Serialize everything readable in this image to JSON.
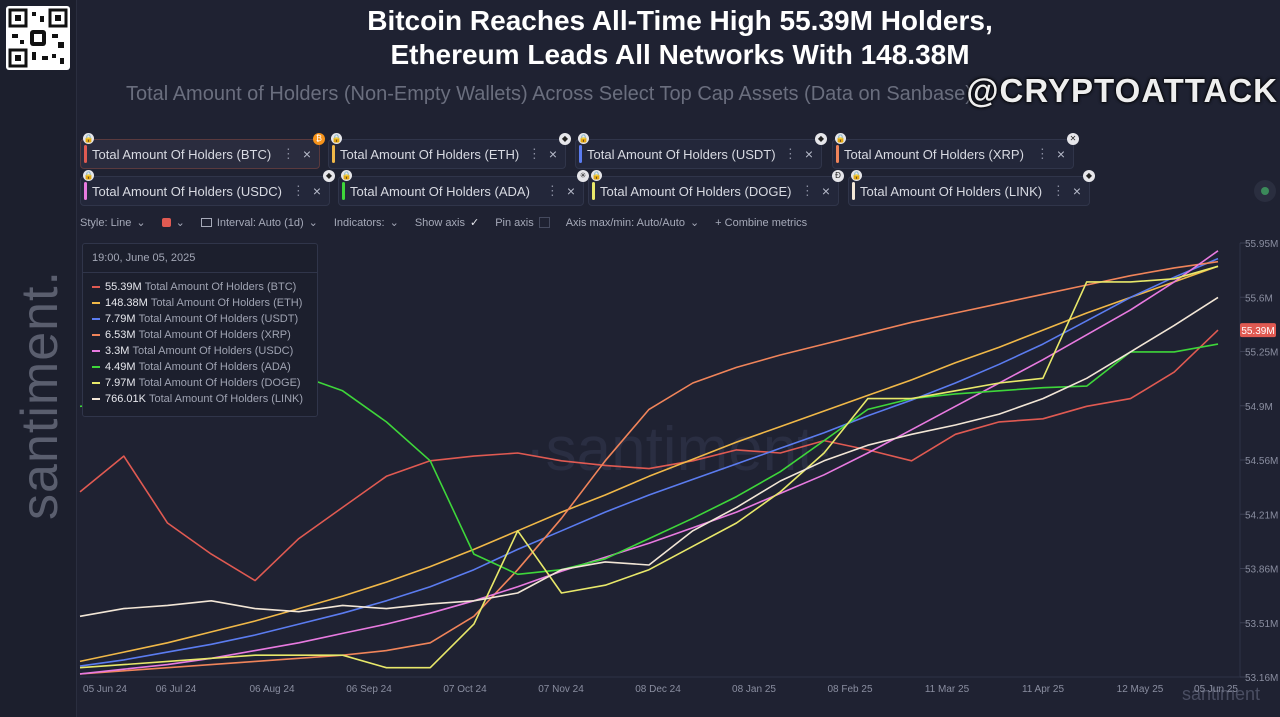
{
  "header": {
    "title_line1": "Bitcoin Reaches All-Time High 55.39M Holders,",
    "title_line2": "Ethereum Leads All Networks With 148.38M",
    "subtitle": "Total Amount of Holders (Non-Empty Wallets) Across Select Top Cap Assets (Data on Sanbase)",
    "handle": "@CRYPTOATTACK",
    "side_watermark": "santiment.",
    "qr_icon": "qr-code-icon"
  },
  "metrics": [
    {
      "label": "Total Amount Of Holders (BTC)",
      "color": "#e05a52",
      "coin": "bitcoin-icon"
    },
    {
      "label": "Total Amount Of Holders (ETH)",
      "color": "#f0b848",
      "coin": "ethereum-icon"
    },
    {
      "label": "Total Amount Of Holders (USDT)",
      "color": "#5b7cf0",
      "coin": "ethereum-icon"
    },
    {
      "label": "Total Amount Of Holders (XRP)",
      "color": "#f0845a",
      "coin": "close-icon"
    },
    {
      "label": "Total Amount Of Holders (USDC)",
      "color": "#e87ae0",
      "coin": "ethereum-icon"
    },
    {
      "label": "Total Amount Of Holders (ADA)",
      "color": "#3ed63a",
      "coin": "cardano-icon"
    },
    {
      "label": "Total Amount Of Holders (DOGE)",
      "color": "#e8e86a",
      "coin": "dogecoin-icon"
    },
    {
      "label": "Total Amount Of Holders (LINK)",
      "color": "#f2e6d6",
      "coin": "ethereum-icon"
    }
  ],
  "toolbar": {
    "style": "Style: Line",
    "interval": "Interval: Auto (1d)",
    "indicators": "Indicators:",
    "show_axis": "Show axis",
    "pin_axis": "Pin axis",
    "axis_maxmin": "Axis max/min: Auto/Auto",
    "combine": "+ Combine metrics",
    "dots_glyph": "⋮",
    "close_glyph": "×",
    "chevron_glyph": "⌄",
    "check_glyph": "✓"
  },
  "legend": {
    "date": "19:00, June 05, 2025",
    "rows": [
      {
        "value": "55.39M",
        "label": "Total Amount Of Holders (BTC)",
        "color": "#e05a52"
      },
      {
        "value": "148.38M",
        "label": "Total Amount Of Holders (ETH)",
        "color": "#f0b848"
      },
      {
        "value": "7.79M",
        "label": "Total Amount Of Holders (USDT)",
        "color": "#5b7cf0"
      },
      {
        "value": "6.53M",
        "label": "Total Amount Of Holders (XRP)",
        "color": "#f0845a"
      },
      {
        "value": "3.3M",
        "label": "Total Amount Of Holders (USDC)",
        "color": "#e87ae0"
      },
      {
        "value": "4.49M",
        "label": "Total Amount Of Holders (ADA)",
        "color": "#3ed63a"
      },
      {
        "value": "7.97M",
        "label": "Total Amount Of Holders (DOGE)",
        "color": "#e8e86a"
      },
      {
        "value": "766.01K",
        "label": "Total Amount Of Holders (LINK)",
        "color": "#f2e6d6"
      }
    ]
  },
  "chart_data": {
    "type": "line",
    "x_ticks": [
      "05 Jun 24",
      "06 Jul 24",
      "06 Aug 24",
      "06 Sep 24",
      "07 Oct 24",
      "07 Nov 24",
      "08 Dec 24",
      "08 Jan 25",
      "08 Feb 25",
      "11 Mar 25",
      "11 Apr 25",
      "12 May 25",
      "05 Jun 25"
    ],
    "y_ticks": [
      "55.95M",
      "55.6M",
      "55.25M",
      "54.9M",
      "54.56M",
      "54.21M",
      "53.86M",
      "53.51M",
      "53.16M"
    ],
    "ylim": [
      53.16,
      55.95
    ],
    "y_unit": "M",
    "current_value": "55.39M",
    "watermark_center": "·santiment·",
    "watermark_corner": "santiment",
    "series": [
      {
        "name": "Total Amount Of Holders (BTC)",
        "color": "#e05a52",
        "values": [
          54.35,
          54.58,
          54.15,
          53.95,
          53.78,
          54.05,
          54.25,
          54.45,
          54.55,
          54.58,
          54.6,
          54.55,
          54.52,
          54.5,
          54.55,
          54.62,
          54.6,
          54.68,
          54.62,
          54.55,
          54.72,
          54.8,
          54.82,
          54.9,
          54.95,
          55.12,
          55.39
        ]
      },
      {
        "name": "Total Amount Of Holders (ETH)",
        "color": "#f0b848",
        "values": [
          53.26,
          53.32,
          53.38,
          53.45,
          53.52,
          53.6,
          53.68,
          53.77,
          53.87,
          53.98,
          54.1,
          54.22,
          54.33,
          54.45,
          54.56,
          54.67,
          54.77,
          54.87,
          54.97,
          55.07,
          55.18,
          55.28,
          55.39,
          55.5,
          55.6,
          55.7,
          55.8
        ]
      },
      {
        "name": "Total Amount Of Holders (USDT)",
        "color": "#5b7cf0",
        "values": [
          53.23,
          53.27,
          53.32,
          53.37,
          53.43,
          53.5,
          53.57,
          53.65,
          53.74,
          53.85,
          53.98,
          54.1,
          54.22,
          54.33,
          54.43,
          54.53,
          54.63,
          54.73,
          54.84,
          54.94,
          55.05,
          55.17,
          55.3,
          55.45,
          55.6,
          55.73,
          55.85
        ]
      },
      {
        "name": "Total Amount Of Holders (XRP)",
        "color": "#f0845a",
        "values": [
          53.18,
          53.2,
          53.22,
          53.24,
          53.26,
          53.28,
          53.3,
          53.33,
          53.38,
          53.55,
          53.85,
          54.18,
          54.55,
          54.88,
          55.05,
          55.15,
          55.23,
          55.3,
          55.37,
          55.44,
          55.5,
          55.56,
          55.62,
          55.68,
          55.74,
          55.79,
          55.83
        ]
      },
      {
        "name": "Total Amount Of Holders (USDC)",
        "color": "#e87ae0",
        "values": [
          53.18,
          53.21,
          53.24,
          53.28,
          53.33,
          53.38,
          53.44,
          53.5,
          53.57,
          53.65,
          53.74,
          53.84,
          53.93,
          54.02,
          54.12,
          54.22,
          54.34,
          54.46,
          54.6,
          54.75,
          54.9,
          55.05,
          55.2,
          55.36,
          55.52,
          55.7,
          55.9
        ]
      },
      {
        "name": "Total Amount Of Holders (ADA)",
        "color": "#3ed63a",
        "values": [
          54.9,
          54.92,
          54.95,
          55.1,
          55.12,
          55.1,
          55.0,
          54.8,
          54.55,
          53.95,
          53.82,
          53.85,
          53.92,
          54.05,
          54.18,
          54.32,
          54.48,
          54.68,
          54.88,
          54.95,
          54.98,
          55.0,
          55.02,
          55.03,
          55.25,
          55.25,
          55.3
        ]
      },
      {
        "name": "Total Amount Of Holders (DOGE)",
        "color": "#e8e86a",
        "values": [
          53.22,
          53.24,
          53.26,
          53.28,
          53.3,
          53.3,
          53.3,
          53.22,
          53.22,
          53.5,
          54.1,
          53.7,
          53.75,
          53.85,
          54.0,
          54.15,
          54.35,
          54.6,
          54.95,
          54.95,
          55.0,
          55.05,
          55.08,
          55.7,
          55.7,
          55.72,
          55.8
        ]
      },
      {
        "name": "Total Amount Of Holders (LINK)",
        "color": "#f2e6d6",
        "values": [
          53.55,
          53.6,
          53.62,
          53.65,
          53.6,
          53.58,
          53.62,
          53.6,
          53.63,
          53.65,
          53.7,
          53.85,
          53.9,
          53.88,
          54.1,
          54.25,
          54.42,
          54.55,
          54.65,
          54.72,
          54.78,
          54.85,
          54.95,
          55.08,
          55.25,
          55.42,
          55.6
        ]
      }
    ]
  }
}
